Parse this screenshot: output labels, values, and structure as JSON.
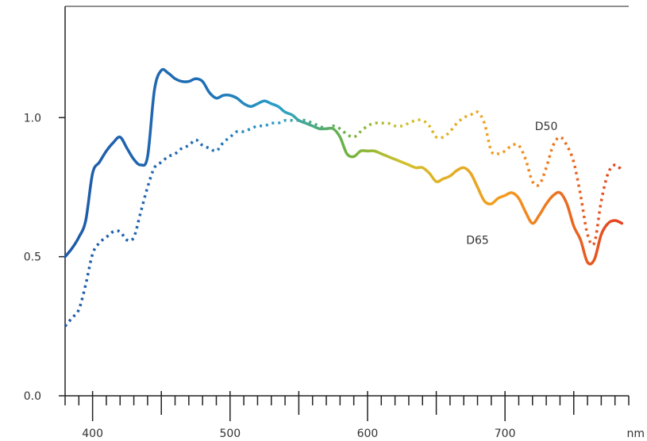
{
  "chart_data": {
    "type": "line",
    "xlabel": "",
    "ylabel": "",
    "xlim": [
      380,
      790
    ],
    "ylim": [
      0.0,
      1.4
    ],
    "x_unit": "nm",
    "x_ticks": [
      400,
      500,
      600,
      700
    ],
    "y_ticks": [
      {
        "value": 0.0,
        "label": "0.0"
      },
      {
        "value": 0.5,
        "label": "0.5"
      },
      {
        "value": 1.0,
        "label": "1.0"
      }
    ],
    "grid": false,
    "colors": {
      "axis": "#222222",
      "gradient": [
        "#1f5aa8",
        "#1f6fb5",
        "#2aa0c8",
        "#6cb33f",
        "#d3c02a",
        "#f39a1f",
        "#e23b20"
      ],
      "gradient_stops": [
        0.0,
        0.25,
        0.38,
        0.5,
        0.6,
        0.78,
        1.0
      ]
    },
    "series": [
      {
        "name": "D65",
        "style": "solid",
        "label_at": {
          "x": 680,
          "y": 0.56
        },
        "x": [
          380,
          385,
          390,
          395,
          400,
          405,
          410,
          415,
          420,
          425,
          430,
          435,
          440,
          445,
          450,
          455,
          460,
          465,
          470,
          475,
          480,
          485,
          490,
          495,
          500,
          505,
          510,
          515,
          520,
          525,
          530,
          535,
          540,
          545,
          550,
          555,
          560,
          565,
          570,
          575,
          580,
          585,
          590,
          595,
          600,
          605,
          610,
          615,
          620,
          625,
          630,
          635,
          640,
          645,
          650,
          655,
          660,
          665,
          670,
          675,
          680,
          685,
          690,
          695,
          700,
          705,
          710,
          715,
          720,
          725,
          730,
          735,
          740,
          745,
          750,
          755,
          760,
          765,
          770,
          775,
          780,
          785
        ],
        "values": [
          0.5,
          0.53,
          0.57,
          0.63,
          0.8,
          0.84,
          0.88,
          0.91,
          0.93,
          0.89,
          0.85,
          0.83,
          0.86,
          1.1,
          1.17,
          1.16,
          1.14,
          1.13,
          1.13,
          1.14,
          1.13,
          1.09,
          1.07,
          1.08,
          1.08,
          1.07,
          1.05,
          1.04,
          1.05,
          1.06,
          1.05,
          1.04,
          1.02,
          1.01,
          0.99,
          0.98,
          0.97,
          0.96,
          0.96,
          0.96,
          0.93,
          0.87,
          0.86,
          0.88,
          0.88,
          0.88,
          0.87,
          0.86,
          0.85,
          0.84,
          0.83,
          0.82,
          0.82,
          0.8,
          0.77,
          0.78,
          0.79,
          0.81,
          0.82,
          0.8,
          0.75,
          0.7,
          0.69,
          0.71,
          0.72,
          0.73,
          0.71,
          0.66,
          0.62,
          0.65,
          0.69,
          0.72,
          0.73,
          0.69,
          0.61,
          0.56,
          0.48,
          0.49,
          0.58,
          0.62,
          0.63,
          0.62
        ]
      },
      {
        "name": "D50",
        "style": "dotted",
        "label_at": {
          "x": 730,
          "y": 0.97
        },
        "x": [
          380,
          385,
          390,
          395,
          400,
          405,
          410,
          415,
          420,
          425,
          430,
          435,
          440,
          445,
          450,
          455,
          460,
          465,
          470,
          475,
          480,
          485,
          490,
          495,
          500,
          505,
          510,
          515,
          520,
          525,
          530,
          535,
          540,
          545,
          550,
          555,
          560,
          565,
          570,
          575,
          580,
          585,
          590,
          595,
          600,
          605,
          610,
          615,
          620,
          625,
          630,
          635,
          640,
          645,
          650,
          655,
          660,
          665,
          670,
          675,
          680,
          685,
          690,
          695,
          700,
          705,
          710,
          715,
          720,
          725,
          730,
          735,
          740,
          745,
          750,
          755,
          760,
          765,
          770,
          775,
          780,
          785
        ],
        "values": [
          0.25,
          0.28,
          0.31,
          0.4,
          0.51,
          0.55,
          0.57,
          0.59,
          0.59,
          0.56,
          0.57,
          0.66,
          0.75,
          0.82,
          0.84,
          0.86,
          0.87,
          0.89,
          0.9,
          0.92,
          0.9,
          0.89,
          0.88,
          0.91,
          0.93,
          0.95,
          0.95,
          0.96,
          0.97,
          0.97,
          0.98,
          0.98,
          0.99,
          0.99,
          0.99,
          0.99,
          0.98,
          0.97,
          0.96,
          0.97,
          0.96,
          0.94,
          0.93,
          0.95,
          0.97,
          0.98,
          0.98,
          0.98,
          0.97,
          0.97,
          0.98,
          0.99,
          0.99,
          0.97,
          0.93,
          0.93,
          0.95,
          0.98,
          1.0,
          1.01,
          1.02,
          0.98,
          0.88,
          0.87,
          0.88,
          0.9,
          0.9,
          0.85,
          0.77,
          0.76,
          0.82,
          0.9,
          0.93,
          0.9,
          0.84,
          0.72,
          0.58,
          0.55,
          0.7,
          0.8,
          0.83,
          0.81
        ]
      }
    ]
  }
}
